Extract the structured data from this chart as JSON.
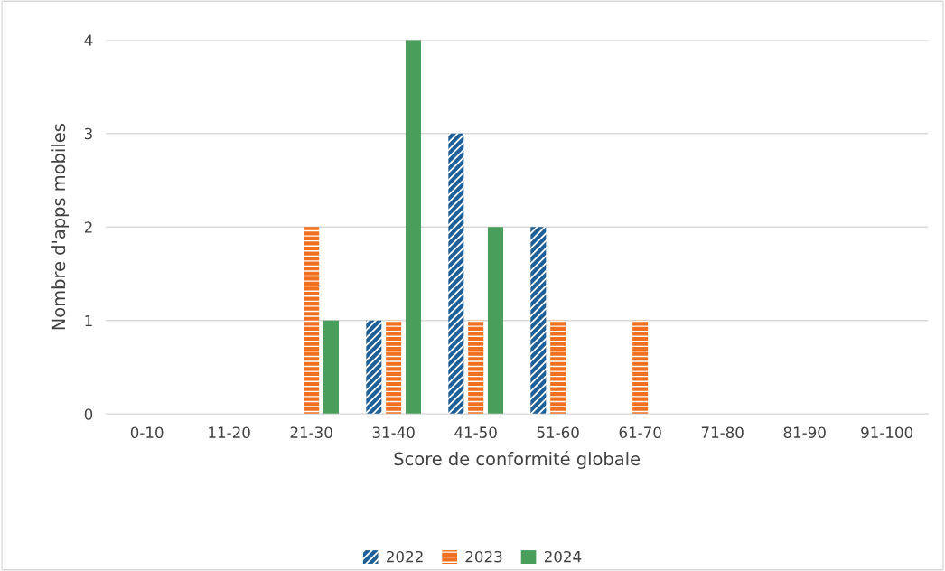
{
  "chart_data": {
    "type": "bar",
    "xlabel": "Score de conformité globale",
    "ylabel": "Nombre d'apps mobiles",
    "categories": [
      "0-10",
      "11-20",
      "21-30",
      "31-40",
      "41-50",
      "51-60",
      "61-70",
      "71-80",
      "81-90",
      "91-100"
    ],
    "series": [
      {
        "name": "2022",
        "color": "#1f5f97",
        "values": [
          0,
          0,
          0,
          1,
          3,
          2,
          0,
          0,
          0,
          0
        ]
      },
      {
        "name": "2023",
        "color": "#f07020",
        "values": [
          0,
          0,
          2,
          1,
          1,
          1,
          1,
          0,
          0,
          0
        ]
      },
      {
        "name": "2024",
        "color": "#4a9e5c",
        "values": [
          0,
          0,
          1,
          4,
          2,
          0,
          0,
          0,
          0,
          0
        ]
      }
    ],
    "ylim": [
      0,
      4
    ],
    "yticks": [
      0,
      1,
      2,
      3,
      4
    ],
    "grid": "y",
    "legend": "bottom"
  }
}
